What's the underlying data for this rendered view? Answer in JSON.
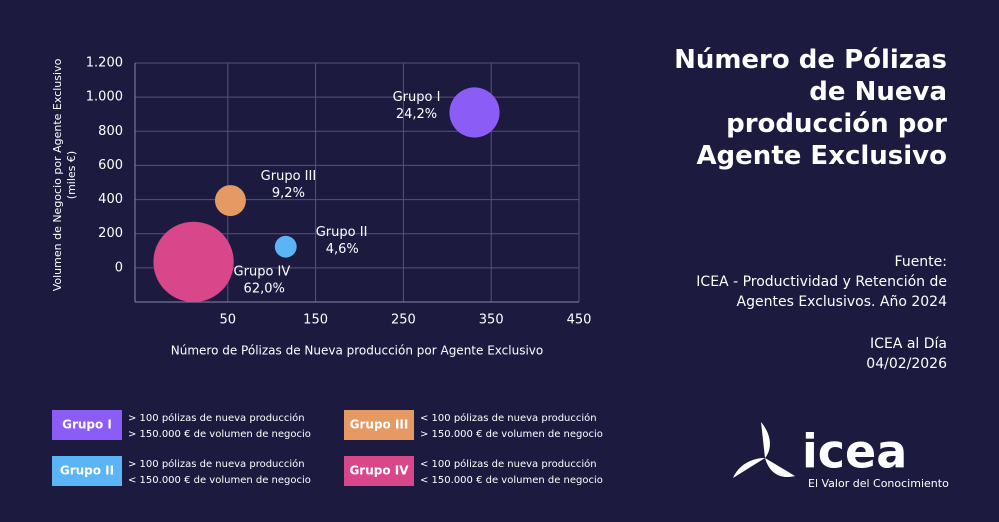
{
  "chart_data": {
    "type": "scatter",
    "title": "Número de Pólizas de Nueva producción por Agente Exclusivo",
    "xlabel": "Número de Pólizas de Nueva producción por Agente Exclusivo",
    "ylabel": [
      "Volumen de Negocio por Agente Exclusivo",
      "(miles €)"
    ],
    "xlim": [
      -50,
      450
    ],
    "xticks": [
      50,
      150,
      250,
      350,
      450
    ],
    "ylim": [
      -200,
      1200
    ],
    "yticks": [
      0,
      200,
      400,
      600,
      800,
      {
        "value": 1000,
        "label": "1.000"
      },
      {
        "value": 1200,
        "label": "1.200"
      }
    ],
    "grid": true,
    "series": [
      {
        "name": "Grupo I",
        "color": "#8b5cf6",
        "x": [
          331
        ],
        "values": [
          910
        ],
        "sizes": [
          24.2
        ],
        "size_labels": [
          "24,2%"
        ]
      },
      {
        "name": "Grupo II",
        "color": "#5ab4f5",
        "x": [
          116
        ],
        "values": [
          124
        ],
        "sizes": [
          4.6
        ],
        "size_labels": [
          "4,6%"
        ]
      },
      {
        "name": "Grupo III",
        "color": "#e59a63",
        "x": [
          53
        ],
        "values": [
          394
        ],
        "sizes": [
          9.2
        ],
        "size_labels": [
          "9,2%"
        ]
      },
      {
        "name": "Grupo IV",
        "color": "#d9478b",
        "x": [
          11
        ],
        "values": [
          35
        ],
        "sizes": [
          62.0
        ],
        "size_labels": [
          "62,0%"
        ]
      }
    ],
    "legend": [
      {
        "label": "Grupo I",
        "lines": [
          "> 100 pólizas de nueva producción",
          "> 150.000 € de volumen de negocio"
        ]
      },
      {
        "label": "Grupo II",
        "lines": [
          "> 100 pólizas de nueva producción",
          "< 150.000 € de volumen de negocio"
        ]
      },
      {
        "label": "Grupo III",
        "lines": [
          "< 100 pólizas de nueva producción",
          "> 150.000 € de volumen de negocio"
        ]
      },
      {
        "label": "Grupo IV",
        "lines": [
          "< 100 pólizas de nueva producción",
          "< 150.000 € de volumen de negocio"
        ]
      }
    ],
    "source_label": "Fuente:",
    "source": "ICEA - Productividad y Retención de Agentes Exclusivos. Año 2024",
    "footer": "ICEA al Día",
    "date": "04/02/2026",
    "logo": "icea",
    "tagline": "El Valor del Conocimiento"
  }
}
